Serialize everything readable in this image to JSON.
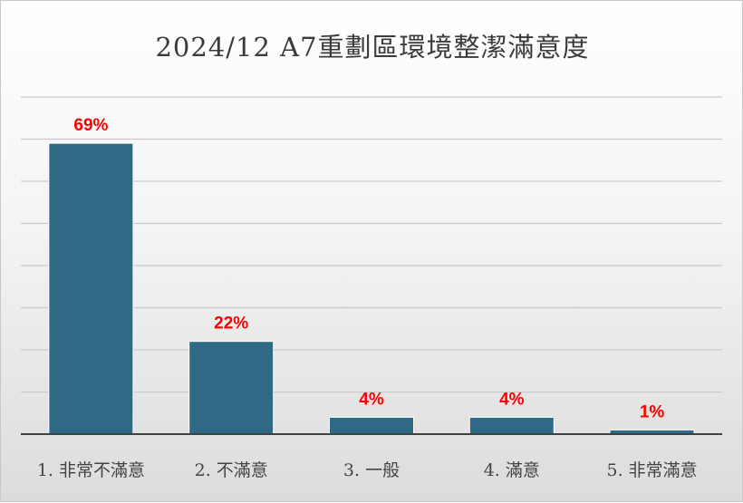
{
  "chart_data": {
    "type": "bar",
    "title": "2024/12 A7重劃區環境整潔滿意度",
    "categories": [
      "1. 非常不滿意",
      "2. 不滿意",
      "3. 一般",
      "4. 滿意",
      "5. 非常滿意"
    ],
    "values": [
      69,
      22,
      4,
      4,
      1
    ],
    "data_labels": [
      "69%",
      "22%",
      "4%",
      "4%",
      "1%"
    ],
    "xlabel": "",
    "ylabel": "",
    "ylim": [
      0,
      80
    ],
    "grid": true,
    "legend": "none",
    "bar_color": "#2e6a86",
    "label_color": "#ff0000"
  }
}
